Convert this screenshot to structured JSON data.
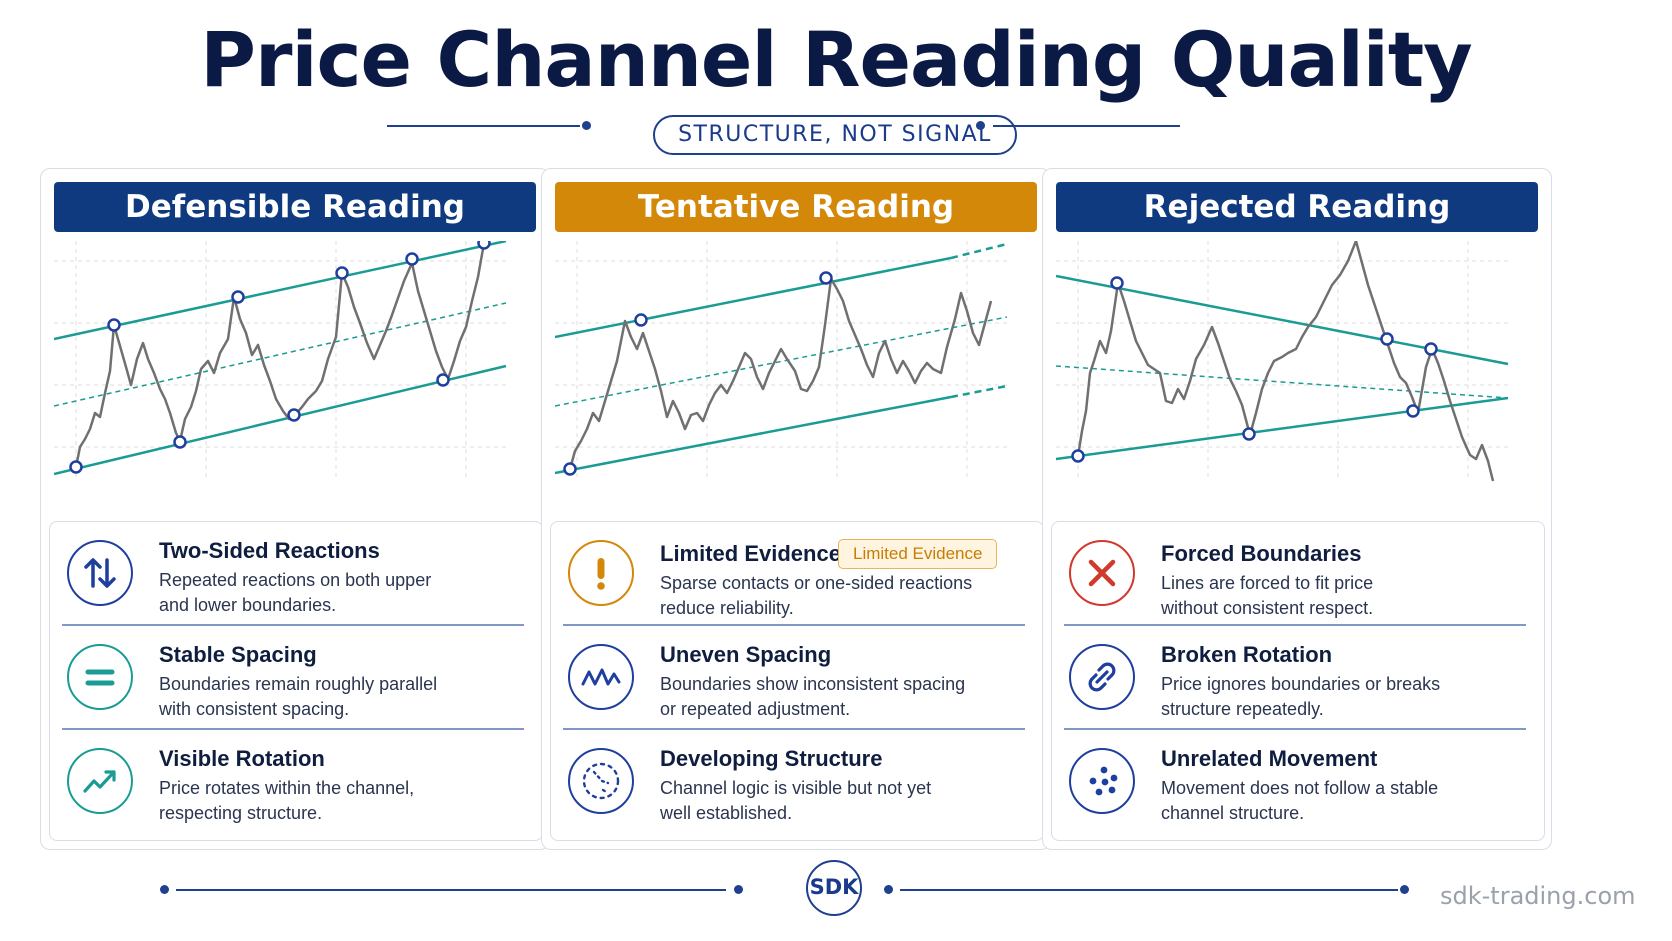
{
  "title": "Price Channel Reading Quality",
  "subtitle": "STRUCTURE, NOT SIGNAL",
  "colors": {
    "navy": "#0f3a80",
    "orange": "#d4880a",
    "teal": "#1a9c94",
    "red": "#d3382c",
    "price": "#707070"
  },
  "panels": [
    {
      "header": "Defensible Reading",
      "items": [
        {
          "icon": "up-down-arrows-icon",
          "heading": "Two-Sided Reactions",
          "desc1": "Repeated reactions on both upper",
          "desc2": "and lower boundaries."
        },
        {
          "icon": "equals-icon",
          "heading": "Stable Spacing",
          "desc1": "Boundaries remain roughly parallel",
          "desc2": "with consistent spacing."
        },
        {
          "icon": "trend-up-icon",
          "heading": "Visible Rotation",
          "desc1": "Price rotates within the channel,",
          "desc2": "respecting structure."
        }
      ]
    },
    {
      "header": "Tentative Reading",
      "badge": "Limited Evidence",
      "items": [
        {
          "icon": "exclamation-icon",
          "heading": "Limited Evidence",
          "desc1": "Sparse contacts or one-sided reactions",
          "desc2": "reduce reliability."
        },
        {
          "icon": "wave-icon",
          "heading": "Uneven Spacing",
          "desc1": "Boundaries show inconsistent spacing",
          "desc2": "or repeated adjustment."
        },
        {
          "icon": "dotted-circle-icon",
          "heading": "Developing Structure",
          "desc1": "Channel logic is visible but not yet",
          "desc2": "well established."
        }
      ]
    },
    {
      "header": "Rejected Reading",
      "items": [
        {
          "icon": "x-icon",
          "heading": "Forced Boundaries",
          "desc1": "Lines are forced to fit price",
          "desc2": "without consistent respect."
        },
        {
          "icon": "broken-link-icon",
          "heading": "Broken Rotation",
          "desc1": "Price ignores boundaries or breaks",
          "desc2": "structure repeatedly."
        },
        {
          "icon": "scattered-dots-icon",
          "heading": "Unrelated Movement",
          "desc1": "Movement does not follow a stable",
          "desc2": "channel structure."
        }
      ]
    }
  ],
  "footer": {
    "logo": "SDK",
    "website": "sdk-trading.com"
  }
}
